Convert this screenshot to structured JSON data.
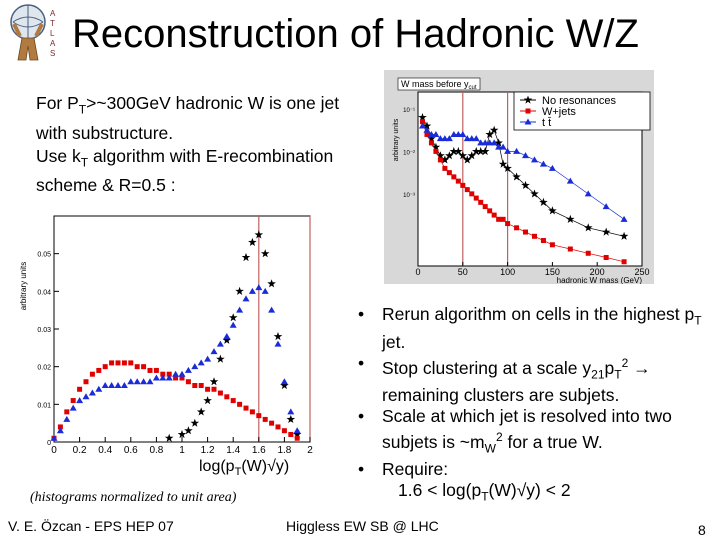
{
  "title": "Reconstruction of Hadronic W/Z",
  "logo_text": "ATLAS",
  "intro": {
    "line1_a": "For P",
    "line1_sub": "T",
    "line1_b": ">~300GeV hadronic W is one jet",
    "line2": "with substructure.",
    "line3_a": "Use k",
    "line3_sub": "T",
    "line3_b": " algorithm with E-recombination",
    "line4": "scheme & R=0.5 :"
  },
  "bullets": {
    "b1_a": "Rerun algorithm on cells in the highest p",
    "b1_sub": "T",
    "b1_b": " jet.",
    "b2_a": "Stop clustering at a scale y",
    "b2_sub1": "21",
    "b2_b": "p",
    "b2_sub2": "T",
    "b2_sup": "2",
    "b2_c": " → remaining clusters are subjets.",
    "b3_a": "Scale at which jet is resolved into two subjets is ~m",
    "b3_sub": "W",
    "b3_sup": "2",
    "b3_b": " for a true W.",
    "b4": "Require:",
    "b4_ind_a": "1.6 < log(p",
    "b4_ind_sub": "T",
    "b4_ind_b": "(W)√y) < 2"
  },
  "note": "(histograms normalized to unit area)",
  "footer": {
    "left": "V. E. Özcan - EPS HEP 07",
    "center": "Higgless EW SB @ LHC",
    "page": "8"
  },
  "colors": {
    "signal": "#000000",
    "wjets": "#e00000",
    "ttbar": "#1a2cd8",
    "cutline": "#c06060"
  },
  "chart_data": [
    {
      "type": "scatter",
      "title": "",
      "xlabel": "log(pT(W)√y)",
      "ylabel": "arbitrary units",
      "xlim": [
        0,
        2
      ],
      "ylim": [
        0,
        0.06
      ],
      "xticks": [
        "0",
        "0.2",
        "0.4",
        "0.6",
        "0.8",
        "1",
        "1.2",
        "1.4",
        "1.6",
        "1.8",
        "2"
      ],
      "yticks": [
        "0",
        "0.01",
        "0.02",
        "0.03",
        "0.04",
        "0.05"
      ],
      "cut_lines": [
        1.6,
        2.0
      ],
      "series": [
        {
          "color": "#000000",
          "marker": "star",
          "x": [
            0.9,
            1.0,
            1.05,
            1.1,
            1.15,
            1.2,
            1.25,
            1.3,
            1.35,
            1.4,
            1.45,
            1.5,
            1.55,
            1.6,
            1.65,
            1.7,
            1.75,
            1.8,
            1.85,
            1.9
          ],
          "y": [
            0.001,
            0.002,
            0.003,
            0.005,
            0.008,
            0.011,
            0.016,
            0.022,
            0.027,
            0.033,
            0.04,
            0.049,
            0.053,
            0.055,
            0.05,
            0.042,
            0.028,
            0.015,
            0.006,
            0.002
          ]
        },
        {
          "color": "#e00000",
          "marker": "square",
          "x": [
            0.0,
            0.05,
            0.1,
            0.15,
            0.2,
            0.25,
            0.3,
            0.35,
            0.4,
            0.45,
            0.5,
            0.55,
            0.6,
            0.65,
            0.7,
            0.75,
            0.8,
            0.85,
            0.9,
            0.95,
            1.0,
            1.05,
            1.1,
            1.15,
            1.2,
            1.25,
            1.3,
            1.35,
            1.4,
            1.45,
            1.5,
            1.55,
            1.6,
            1.65,
            1.7,
            1.75,
            1.8,
            1.85,
            1.9
          ],
          "y": [
            0.001,
            0.004,
            0.008,
            0.011,
            0.014,
            0.016,
            0.018,
            0.019,
            0.02,
            0.021,
            0.021,
            0.021,
            0.021,
            0.02,
            0.02,
            0.019,
            0.019,
            0.018,
            0.018,
            0.017,
            0.017,
            0.016,
            0.015,
            0.015,
            0.014,
            0.014,
            0.013,
            0.012,
            0.011,
            0.01,
            0.009,
            0.008,
            0.007,
            0.006,
            0.005,
            0.004,
            0.003,
            0.002,
            0.001
          ]
        },
        {
          "color": "#1a2cd8",
          "marker": "triangle",
          "x": [
            0.0,
            0.05,
            0.1,
            0.15,
            0.2,
            0.25,
            0.3,
            0.35,
            0.4,
            0.45,
            0.5,
            0.55,
            0.6,
            0.65,
            0.7,
            0.75,
            0.8,
            0.85,
            0.9,
            0.95,
            1.0,
            1.05,
            1.1,
            1.15,
            1.2,
            1.25,
            1.3,
            1.35,
            1.4,
            1.45,
            1.5,
            1.55,
            1.6,
            1.65,
            1.7,
            1.75,
            1.8,
            1.85,
            1.9
          ],
          "y": [
            0.001,
            0.003,
            0.006,
            0.009,
            0.011,
            0.012,
            0.013,
            0.014,
            0.015,
            0.015,
            0.015,
            0.015,
            0.016,
            0.016,
            0.016,
            0.016,
            0.017,
            0.017,
            0.017,
            0.018,
            0.018,
            0.019,
            0.02,
            0.021,
            0.022,
            0.024,
            0.026,
            0.028,
            0.031,
            0.035,
            0.038,
            0.04,
            0.041,
            0.04,
            0.035,
            0.026,
            0.016,
            0.008,
            0.003
          ]
        }
      ]
    },
    {
      "type": "line",
      "title": "W mass before y",
      "title_sub": "cut",
      "xlabel": "hadronic W mass (GeV)",
      "ylabel": "arbitrary units",
      "xlim": [
        0,
        250
      ],
      "xticks": [
        "0",
        "50",
        "100",
        "150",
        "200",
        "250"
      ],
      "yticks": [
        "10⁻¹",
        "10⁻²",
        "10⁻³"
      ],
      "yscale": "log",
      "cut_lines": [
        50,
        100
      ],
      "legend": [
        "No resonances",
        "W+jets",
        "t t̄"
      ],
      "legend_position": "top-right",
      "series": [
        {
          "name": "No resonances",
          "color": "#000000",
          "marker": "star",
          "x": [
            5,
            10,
            15,
            20,
            25,
            30,
            35,
            40,
            45,
            50,
            55,
            60,
            65,
            70,
            75,
            80,
            85,
            90,
            95,
            100,
            110,
            120,
            130,
            140,
            150,
            170,
            190,
            210,
            230
          ],
          "y": [
            -1.2,
            -1.4,
            -1.7,
            -1.9,
            -2.1,
            -2.2,
            -2.1,
            -2.0,
            -2.0,
            -2.1,
            -2.2,
            -2.1,
            -2.0,
            -2.0,
            -2.0,
            -1.6,
            -1.5,
            -1.8,
            -2.3,
            -2.4,
            -2.6,
            -2.8,
            -3.0,
            -3.2,
            -3.4,
            -3.6,
            -3.8,
            -3.9,
            -4.0
          ]
        },
        {
          "name": "W+jets",
          "color": "#e00000",
          "marker": "square",
          "x": [
            5,
            10,
            15,
            20,
            25,
            30,
            35,
            40,
            45,
            50,
            55,
            60,
            65,
            70,
            75,
            80,
            85,
            90,
            95,
            100,
            110,
            120,
            130,
            140,
            150,
            170,
            190,
            210,
            230
          ],
          "y": [
            -1.3,
            -1.6,
            -1.8,
            -2.0,
            -2.2,
            -2.4,
            -2.5,
            -2.6,
            -2.7,
            -2.8,
            -2.9,
            -3.0,
            -3.1,
            -3.2,
            -3.3,
            -3.4,
            -3.5,
            -3.6,
            -3.6,
            -3.7,
            -3.8,
            -3.9,
            -4.0,
            -4.1,
            -4.2,
            -4.3,
            -4.4,
            -4.5,
            -4.6
          ]
        },
        {
          "name": "t t̄",
          "color": "#1a2cd8",
          "marker": "triangle",
          "x": [
            5,
            10,
            15,
            20,
            25,
            30,
            35,
            40,
            45,
            50,
            55,
            60,
            65,
            70,
            75,
            80,
            85,
            90,
            95,
            100,
            110,
            120,
            130,
            140,
            150,
            170,
            190,
            210,
            230
          ],
          "y": [
            -1.4,
            -1.5,
            -1.6,
            -1.6,
            -1.7,
            -1.7,
            -1.7,
            -1.6,
            -1.6,
            -1.6,
            -1.7,
            -1.7,
            -1.7,
            -1.8,
            -1.8,
            -1.8,
            -1.8,
            -1.9,
            -1.9,
            -2.0,
            -2.0,
            -2.1,
            -2.2,
            -2.3,
            -2.4,
            -2.7,
            -3.0,
            -3.3,
            -3.6
          ]
        }
      ]
    }
  ]
}
